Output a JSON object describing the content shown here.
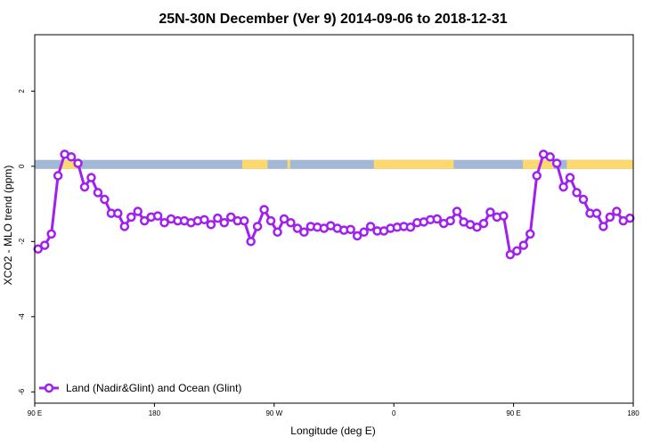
{
  "chart_data": {
    "type": "line",
    "title": "25N-30N December (Ver 9)   2014-09-06 to 2018-12-31",
    "xlabel": "Longitude (deg E)",
    "ylabel": "XCO2 - MLO trend (ppm)",
    "xlim": [
      90,
      540
    ],
    "ylim": [
      -6.3,
      3.5
    ],
    "x_ticks": [
      {
        "value": 90,
        "label": "90 E"
      },
      {
        "value": 180,
        "label": "180"
      },
      {
        "value": 270,
        "label": "90 W"
      },
      {
        "value": 360,
        "label": "0"
      },
      {
        "value": 450,
        "label": "90 E"
      },
      {
        "value": 540,
        "label": "180"
      }
    ],
    "y_ticks": [
      {
        "value": 2,
        "label": "2"
      },
      {
        "value": 0,
        "label": "0"
      },
      {
        "value": -2,
        "label": "-2"
      },
      {
        "value": -4,
        "label": "-4"
      },
      {
        "value": -6,
        "label": "-6"
      }
    ],
    "legend": {
      "position": "bottom-left",
      "label": "Land (Nadir&Glint) and Ocean (Glint)"
    },
    "colors": {
      "series": "#a020f0",
      "ocean": "#a3b8d6",
      "land": "#fcd86e"
    },
    "surface_band": {
      "y_range": [
        -0.07,
        0.17
      ],
      "land_segments": [
        [
          110,
          122
        ],
        [
          246,
          265
        ],
        [
          280,
          282
        ],
        [
          345,
          405
        ],
        [
          457,
          480
        ],
        [
          490,
          540
        ]
      ]
    },
    "series": [
      {
        "name": "Land (Nadir&Glint) and Ocean (Glint)",
        "x": [
          92.5,
          97.5,
          102.5,
          107.5,
          112.5,
          117.5,
          122.5,
          127.5,
          132.5,
          137.5,
          142.5,
          147.5,
          152.5,
          157.5,
          162.5,
          167.5,
          172.5,
          177.5,
          182.5,
          187.5,
          192.5,
          197.5,
          202.5,
          207.5,
          212.5,
          217.5,
          222.5,
          227.5,
          232.5,
          237.5,
          242.5,
          247.5,
          252.5,
          257.5,
          262.5,
          267.5,
          272.5,
          277.5,
          282.5,
          287.5,
          292.5,
          297.5,
          302.5,
          307.5,
          312.5,
          317.5,
          322.5,
          327.5,
          332.5,
          337.5,
          342.5,
          347.5,
          352.5,
          357.5,
          362.5,
          367.5,
          372.5,
          377.5,
          382.5,
          387.5,
          392.5,
          397.5,
          402.5,
          407.5,
          412.5,
          417.5,
          422.5,
          427.5,
          432.5,
          437.5,
          442.5,
          447.5,
          452.5,
          457.5,
          462.5,
          467.5,
          472.5,
          477.5,
          482.5,
          487.5,
          492.5,
          497.5,
          502.5,
          507.5,
          512.5,
          517.5,
          522.5,
          527.5,
          532.5,
          537.5
        ],
        "values": [
          -2.2,
          -2.1,
          -1.8,
          -0.25,
          0.32,
          0.25,
          0.08,
          -0.55,
          -0.3,
          -0.7,
          -0.88,
          -1.25,
          -1.25,
          -1.6,
          -1.35,
          -1.2,
          -1.45,
          -1.35,
          -1.32,
          -1.5,
          -1.4,
          -1.45,
          -1.45,
          -1.5,
          -1.45,
          -1.42,
          -1.55,
          -1.38,
          -1.5,
          -1.35,
          -1.45,
          -1.45,
          -2.0,
          -1.6,
          -1.15,
          -1.45,
          -1.75,
          -1.4,
          -1.5,
          -1.65,
          -1.75,
          -1.6,
          -1.62,
          -1.65,
          -1.58,
          -1.65,
          -1.7,
          -1.68,
          -1.85,
          -1.75,
          -1.6,
          -1.72,
          -1.72,
          -1.65,
          -1.62,
          -1.6,
          -1.62,
          -1.5,
          -1.48,
          -1.42,
          -1.4,
          -1.52,
          -1.45,
          -1.2,
          -1.48,
          -1.55,
          -1.62,
          -1.52,
          -1.22,
          -1.35,
          -1.32,
          -2.35,
          -2.25,
          -2.1,
          -1.8,
          -0.25,
          0.32,
          0.25,
          0.08,
          -0.55,
          -0.3,
          -0.7,
          -0.88,
          -1.25,
          -1.25,
          -1.6,
          -1.35,
          -1.2,
          -1.45,
          -1.38
        ]
      }
    ]
  }
}
